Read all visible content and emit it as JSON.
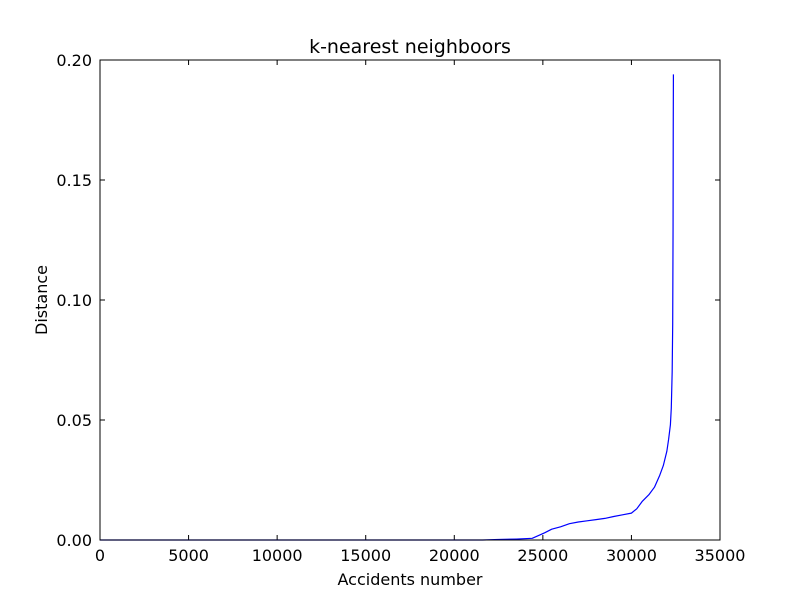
{
  "chart_data": {
    "type": "line",
    "title": "k-nearest neighboors",
    "xlabel": "Accidents number",
    "ylabel": "Distance",
    "xlim": [
      0,
      35000
    ],
    "ylim": [
      0,
      0.2
    ],
    "xticks": [
      0,
      5000,
      10000,
      15000,
      20000,
      25000,
      30000,
      35000
    ],
    "xtick_labels": [
      "0",
      "5000",
      "10000",
      "15000",
      "20000",
      "25000",
      "30000",
      "35000"
    ],
    "yticks": [
      0,
      0.05,
      0.1,
      0.15,
      0.2
    ],
    "ytick_labels": [
      "0.00",
      "0.05",
      "0.10",
      "0.15",
      "0.20"
    ],
    "grid": false,
    "line_color": "#0000ff",
    "series": [
      {
        "x": [
          0,
          21600,
          22500,
          23500,
          24400,
          24800,
          25100,
          25500,
          26000,
          26500,
          27000,
          27500,
          28000,
          28500,
          29000,
          29500,
          30000,
          30300,
          30600,
          31000,
          31300,
          31600,
          31800,
          32000,
          32100,
          32200,
          32250,
          32300,
          32330,
          32350,
          32360,
          32370
        ],
        "y": [
          0,
          0,
          0.0002,
          0.0004,
          0.0007,
          0.002,
          0.003,
          0.0045,
          0.0055,
          0.0068,
          0.0075,
          0.008,
          0.0085,
          0.009,
          0.0098,
          0.0105,
          0.0112,
          0.013,
          0.016,
          0.019,
          0.022,
          0.027,
          0.031,
          0.037,
          0.042,
          0.048,
          0.055,
          0.07,
          0.09,
          0.13,
          0.17,
          0.194
        ]
      }
    ]
  }
}
